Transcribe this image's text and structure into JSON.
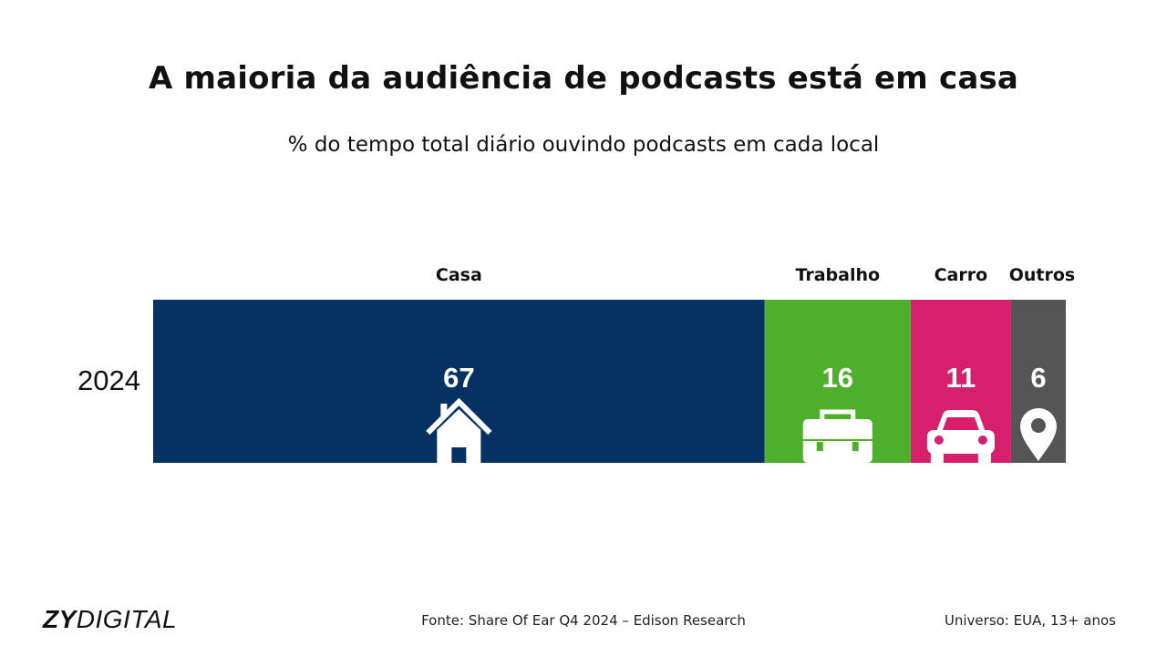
{
  "title": "A maioria da audiência de podcasts está em casa",
  "subtitle": "% do tempo total diário ouvindo podcasts em cada local",
  "footer": {
    "logo_zy": "ZY",
    "logo_digital": "DIGITAL",
    "source": "Fonte: Share Of Ear Q4 2024 – Edison Research",
    "universe": "Universo: EUA, 13+ anos"
  },
  "chart_data": {
    "type": "bar",
    "orientation": "horizontal-stacked",
    "categories": [
      "2024"
    ],
    "series": [
      {
        "name": "Casa",
        "values": [
          67
        ],
        "color": "#063263",
        "icon": "house-icon"
      },
      {
        "name": "Trabalho",
        "values": [
          16
        ],
        "color": "#4DAF2C",
        "icon": "briefcase-icon"
      },
      {
        "name": "Carro",
        "values": [
          11
        ],
        "color": "#D6206E",
        "icon": "car-icon"
      },
      {
        "name": "Outros",
        "values": [
          6
        ],
        "color": "#555555",
        "icon": "location-pin-icon"
      }
    ],
    "total": 100,
    "legend": "top"
  }
}
